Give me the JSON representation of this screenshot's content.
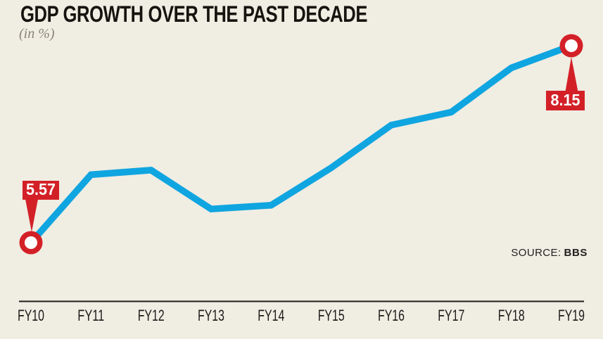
{
  "title": "GDP GROWTH OVER THE PAST DECADE",
  "subtitle": "(in %)",
  "source": {
    "label": "SOURCE:",
    "value": "BBS"
  },
  "chart_data": {
    "type": "line",
    "title": "GDP GROWTH OVER THE PAST DECADE",
    "unit": "in %",
    "series_name": "GDP growth",
    "categories": [
      "FY10",
      "FY11",
      "FY12",
      "FY13",
      "FY14",
      "FY15",
      "FY16",
      "FY17",
      "FY18",
      "FY19"
    ],
    "values": [
      5.57,
      6.46,
      6.52,
      6.01,
      6.06,
      6.55,
      7.11,
      7.28,
      7.86,
      8.15
    ],
    "ylim": [
      5.57,
      8.15
    ],
    "grid": false,
    "legend": "none",
    "annotations": [
      {
        "index": 0,
        "category": "FY10",
        "value": 5.57,
        "label": "5.57",
        "label_position": "above"
      },
      {
        "index": 9,
        "category": "FY19",
        "value": 8.15,
        "label": "8.15",
        "label_position": "below"
      }
    ],
    "colors": {
      "line": "#0fa5e0",
      "marker_ring": "#d32027",
      "marker_core": "#ffffff",
      "annotation_bg": "#d32027",
      "annotation_text": "#ffffff",
      "axis": "#1d1d1b",
      "tick_label": "#1b1b19",
      "background": "#f0ede3"
    }
  }
}
